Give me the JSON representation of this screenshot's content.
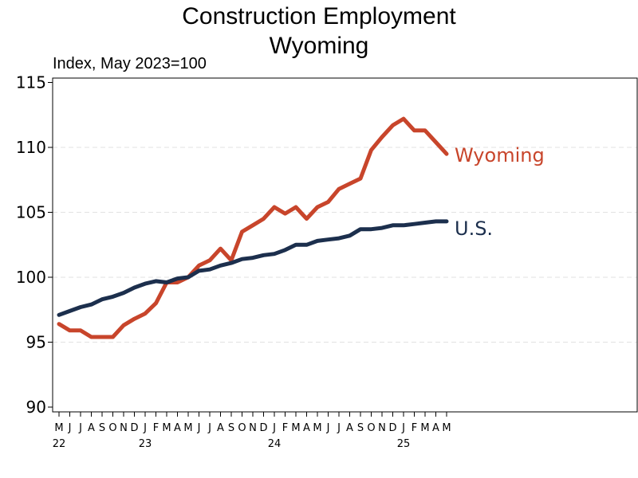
{
  "chart_data": {
    "type": "line",
    "title": "Construction Employment",
    "subtitle": "Wyoming",
    "ylabel": "Index, May 2023=100",
    "ylim": [
      90,
      115
    ],
    "yticks": [
      90,
      95,
      100,
      105,
      110,
      115
    ],
    "grid": true,
    "x_month_labels": [
      "M",
      "J",
      "J",
      "A",
      "S",
      "O",
      "N",
      "D",
      "J",
      "F",
      "M",
      "A",
      "M",
      "J",
      "J",
      "A",
      "S",
      "O",
      "N",
      "D",
      "J",
      "F",
      "M",
      "A",
      "M",
      "J",
      "J",
      "A",
      "S",
      "O",
      "N",
      "D",
      "J",
      "F",
      "M",
      "A",
      "M"
    ],
    "x_year_labels": [
      {
        "label": "22",
        "index": 0
      },
      {
        "label": "23",
        "index": 8
      },
      {
        "label": "24",
        "index": 20
      },
      {
        "label": "25",
        "index": 32
      }
    ],
    "x": [
      "2022-05",
      "2022-06",
      "2022-07",
      "2022-08",
      "2022-09",
      "2022-10",
      "2022-11",
      "2022-12",
      "2023-01",
      "2023-02",
      "2023-03",
      "2023-04",
      "2023-05",
      "2023-06",
      "2023-07",
      "2023-08",
      "2023-09",
      "2023-10",
      "2023-11",
      "2023-12",
      "2024-01",
      "2024-02",
      "2024-03",
      "2024-04",
      "2024-05",
      "2024-06",
      "2024-07",
      "2024-08",
      "2024-09",
      "2024-10",
      "2024-11",
      "2024-12",
      "2025-01",
      "2025-02",
      "2025-03",
      "2025-04",
      "2025-05"
    ],
    "series": [
      {
        "name": "Wyoming",
        "color": "#c8452b",
        "values": [
          96.4,
          95.9,
          95.9,
          95.4,
          95.4,
          95.4,
          96.3,
          96.8,
          97.2,
          98.0,
          99.6,
          99.6,
          100.0,
          100.9,
          101.3,
          102.2,
          101.3,
          103.5,
          104.0,
          104.5,
          105.4,
          104.9,
          105.4,
          104.5,
          105.4,
          105.8,
          106.8,
          107.2,
          107.6,
          109.8,
          110.8,
          111.7,
          112.2,
          111.3,
          111.3,
          110.4,
          109.5
        ]
      },
      {
        "name": "U.S.",
        "color": "#1c2f4d",
        "values": [
          97.1,
          97.4,
          97.7,
          97.9,
          98.3,
          98.5,
          98.8,
          99.2,
          99.5,
          99.7,
          99.6,
          99.9,
          100.0,
          100.5,
          100.6,
          100.9,
          101.1,
          101.4,
          101.5,
          101.7,
          101.8,
          102.1,
          102.5,
          102.5,
          102.8,
          102.9,
          103.0,
          103.2,
          103.7,
          103.7,
          103.8,
          104.0,
          104.0,
          104.1,
          104.2,
          104.3,
          104.3
        ]
      }
    ]
  }
}
